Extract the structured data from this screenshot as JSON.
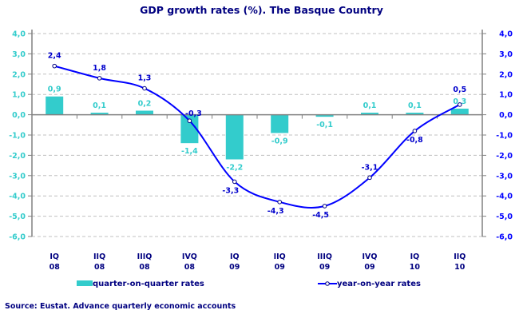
{
  "chart_data": {
    "type": "bar+line",
    "title": "GDP growth rates (%). The Basque Country",
    "categories": [
      [
        "IQ",
        "08"
      ],
      [
        "IIQ",
        "08"
      ],
      [
        "IIIQ",
        "08"
      ],
      [
        "IVQ",
        "08"
      ],
      [
        "IQ",
        "09"
      ],
      [
        "IIQ",
        "09"
      ],
      [
        "IIIQ",
        "09"
      ],
      [
        "IVQ",
        "09"
      ],
      [
        "IQ",
        "10"
      ],
      [
        "IIQ",
        "10"
      ]
    ],
    "series": [
      {
        "name": "quarter-on-quarter rates",
        "type": "bar",
        "axis": "left",
        "color": "#33CCCC",
        "values": [
          0.9,
          0.1,
          0.2,
          -1.4,
          -2.2,
          -0.9,
          -0.1,
          0.1,
          0.1,
          0.3
        ],
        "labels": [
          "0,9",
          "0,1",
          "0,2",
          "-1,4",
          "-2,2",
          "-0,9",
          "-0,1",
          "0,1",
          "0,1",
          "0,3"
        ]
      },
      {
        "name": "year-on-year rates",
        "type": "line",
        "axis": "right",
        "color": "#0000FF",
        "values": [
          2.4,
          1.8,
          1.3,
          -0.3,
          -3.3,
          -4.3,
          -4.5,
          -3.1,
          -0.8,
          0.5
        ],
        "labels": [
          "2,4",
          "1,8",
          "1,3",
          "-0,3",
          "-3,3",
          "-4,3",
          "-4,5",
          "-3,1",
          "-0,8",
          "0,5"
        ]
      }
    ],
    "ylim": [
      -6,
      4
    ],
    "yticks": [
      "4,0",
      "3,0",
      "2,0",
      "1,0",
      "0,0",
      "-1,0",
      "-2,0",
      "-3,0",
      "-4,0",
      "-5,0",
      "-6,0"
    ],
    "left_axis_color": "#33CCCC",
    "right_axis_color": "#0000FF",
    "grid": true,
    "legend_position": "bottom"
  },
  "source": "Source: Eustat. Advance quarterly economic accounts"
}
